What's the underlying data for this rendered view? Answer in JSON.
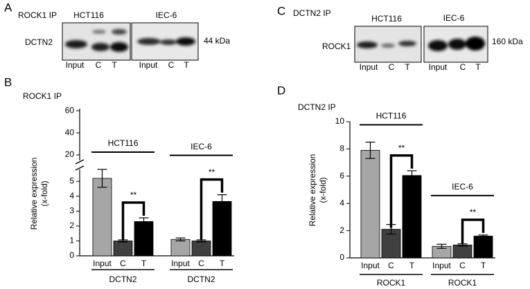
{
  "blots": [
    {
      "panel": "A",
      "ip": "ROCK1 IP",
      "protein": "DCTN2",
      "size": "44 kDa",
      "groups": [
        {
          "name": "HCT116",
          "lanes": [
            "Input",
            "C",
            "T"
          ]
        },
        {
          "name": "IEC-6",
          "lanes": [
            "Input",
            "C",
            "T"
          ]
        }
      ]
    },
    {
      "panel": "C",
      "ip": "DCTN2 IP",
      "protein": "ROCK1",
      "size": "160 kDa",
      "groups": [
        {
          "name": "HCT116",
          "lanes": [
            "Input",
            "C",
            "T"
          ]
        },
        {
          "name": "IEC-6",
          "lanes": [
            "Input",
            "C",
            "T"
          ]
        }
      ]
    }
  ],
  "chart_data": [
    {
      "type": "bar",
      "panel": "B",
      "subtitle": "ROCK1 IP",
      "ylabel": [
        "Relative expression",
        "(x-fold)"
      ],
      "categories": [
        "HCT116",
        "IEC-6"
      ],
      "group_labels": [
        "DCTN2",
        "DCTN2"
      ],
      "significance": [
        "**",
        "**"
      ],
      "series": [
        {
          "name": "Input",
          "color": "#a6a6a6",
          "values": [
            5.2,
            1.1
          ],
          "errors": [
            0.6,
            0.1
          ]
        },
        {
          "name": "C",
          "color": "#404040",
          "values": [
            1.0,
            1.0
          ],
          "errors": [
            0.07,
            0.07
          ]
        },
        {
          "name": "T",
          "color": "#000000",
          "values": [
            2.3,
            3.65
          ],
          "errors": [
            0.25,
            0.45
          ]
        }
      ],
      "ylim": [
        0,
        62
      ],
      "ybreak": [
        5.8,
        15
      ],
      "yticks": [
        0,
        1,
        2,
        3,
        4,
        5,
        20,
        40,
        60
      ]
    },
    {
      "type": "bar",
      "panel": "D",
      "subtitle": "DCTN2 IP",
      "ylabel": [
        "Relative expression",
        "(x-fold)"
      ],
      "categories": [
        "HCT116",
        "IEC-6"
      ],
      "group_labels": [
        "ROCK1",
        "ROCK1"
      ],
      "significance": [
        "**",
        "**"
      ],
      "series": [
        {
          "name": "Input",
          "color": "#a6a6a6",
          "values": [
            7.9,
            0.85
          ],
          "errors": [
            0.6,
            0.15
          ]
        },
        {
          "name": "C",
          "color": "#404040",
          "values": [
            2.1,
            0.95
          ],
          "errors": [
            0.35,
            0.08
          ]
        },
        {
          "name": "T",
          "color": "#000000",
          "values": [
            6.05,
            1.6
          ],
          "errors": [
            0.35,
            0.08
          ]
        }
      ],
      "ylim": [
        0,
        10
      ],
      "yticks": [
        0,
        2,
        4,
        6,
        8,
        10
      ]
    }
  ]
}
